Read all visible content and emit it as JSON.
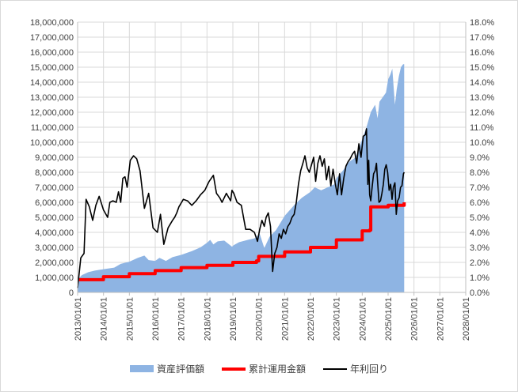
{
  "chart_data": {
    "type": "area",
    "left_axis": {
      "ylim": [
        0,
        18000000
      ],
      "step": 1000000,
      "ticks": [
        "0",
        "1,000,000",
        "2,000,000",
        "3,000,000",
        "4,000,000",
        "5,000,000",
        "6,000,000",
        "7,000,000",
        "8,000,000",
        "9,000,000",
        "10,000,000",
        "11,000,000",
        "12,000,000",
        "13,000,000",
        "14,000,000",
        "15,000,000",
        "16,000,000",
        "17,000,000",
        "18,000,000"
      ]
    },
    "right_axis": {
      "ylim": [
        0,
        18
      ],
      "step": 1,
      "ticks": [
        "0.0%",
        "1.0%",
        "2.0%",
        "3.0%",
        "4.0%",
        "5.0%",
        "6.0%",
        "7.0%",
        "8.0%",
        "9.0%",
        "10.0%",
        "11.0%",
        "12.0%",
        "13.0%",
        "14.0%",
        "15.0%",
        "16.0%",
        "17.0%",
        "18.0%"
      ]
    },
    "x_axis": {
      "range": [
        "2013-01-01",
        "2028-01-01"
      ],
      "ticks": [
        "2013/01/01",
        "2014/01/01",
        "2015/01/01",
        "2016/01/01",
        "2017/01/01",
        "2018/01/01",
        "2019/01/01",
        "2020/01/01",
        "2021/01/01",
        "2022/01/01",
        "2023/01/01",
        "2024/01/01",
        "2025/01/01",
        "2026/01/01",
        "2027/01/01",
        "2028/01/01"
      ]
    },
    "grid": true,
    "legend_position": "bottom",
    "series": [
      {
        "name": "資産評価額",
        "kind": "area",
        "axis": "left",
        "color": "#8eb4e3",
        "x": [
          "2013-01-01",
          "2013-03-01",
          "2013-06-01",
          "2013-09-01",
          "2014-01-01",
          "2014-06-01",
          "2014-09-01",
          "2015-01-01",
          "2015-05-01",
          "2015-08-01",
          "2015-10-01",
          "2016-01-01",
          "2016-03-01",
          "2016-06-01",
          "2016-09-01",
          "2017-01-01",
          "2017-06-01",
          "2017-10-01",
          "2018-01-01",
          "2018-02-15",
          "2018-04-01",
          "2018-06-01",
          "2018-09-01",
          "2018-12-20",
          "2019-01-15",
          "2019-04-01",
          "2019-08-01",
          "2019-11-01",
          "2020-01-15",
          "2020-03-20",
          "2020-06-01",
          "2020-09-01",
          "2021-01-01",
          "2021-06-01",
          "2021-09-01",
          "2022-01-01",
          "2022-03-01",
          "2022-06-01",
          "2022-09-01",
          "2022-12-01",
          "2023-01-01",
          "2023-04-01",
          "2023-07-01",
          "2023-10-01",
          "2024-01-01",
          "2024-03-01",
          "2024-05-01",
          "2024-07-01",
          "2024-08-05",
          "2024-09-01",
          "2024-12-01",
          "2025-01-01",
          "2025-02-01",
          "2025-03-01",
          "2025-04-07",
          "2025-05-01",
          "2025-06-01",
          "2025-07-01",
          "2025-08-01",
          "2025-08-15"
        ],
        "values": [
          850000,
          1150000,
          1350000,
          1450000,
          1550000,
          1650000,
          1900000,
          2050000,
          2300000,
          2450000,
          2150000,
          2100000,
          2300000,
          2100000,
          2350000,
          2500000,
          2750000,
          3000000,
          3300000,
          3500000,
          3200000,
          3400000,
          3450000,
          3050000,
          3150000,
          3350000,
          3500000,
          3600000,
          3900000,
          2950000,
          3700000,
          4150000,
          5100000,
          5900000,
          6300000,
          6700000,
          7000000,
          6800000,
          7000000,
          7200000,
          7600000,
          8100000,
          8700000,
          9000000,
          10200000,
          11000000,
          12000000,
          12500000,
          11600000,
          12700000,
          13300000,
          14200000,
          14500000,
          14900000,
          12500000,
          13500000,
          14400000,
          15000000,
          15200000,
          15200000
        ]
      },
      {
        "name": "累計運用金額",
        "kind": "line",
        "axis": "left",
        "color": "#ff0000",
        "x": [
          "2013-01-01",
          "2014-01-01",
          "2015-01-01",
          "2016-01-01",
          "2017-01-01",
          "2018-01-01",
          "2019-01-01",
          "2019-12-01",
          "2020-01-01",
          "2021-01-01",
          "2022-01-01",
          "2023-01-01",
          "2024-01-01",
          "2024-04-15",
          "2024-05-01",
          "2025-01-01",
          "2025-08-15"
        ],
        "values": [
          850000,
          1050000,
          1250000,
          1450000,
          1650000,
          1800000,
          2000000,
          2100000,
          2400000,
          2700000,
          3000000,
          3500000,
          4100000,
          4150000,
          5700000,
          5800000,
          6000000
        ]
      },
      {
        "name": "年利回り",
        "kind": "line",
        "axis": "right",
        "color": "#000000",
        "x": [
          "2013-01-01",
          "2013-02-15",
          "2013-04-01",
          "2013-05-01",
          "2013-06-15",
          "2013-08-01",
          "2013-09-15",
          "2013-11-01",
          "2014-01-01",
          "2014-03-01",
          "2014-04-01",
          "2014-05-15",
          "2014-07-01",
          "2014-08-01",
          "2014-09-01",
          "2014-10-01",
          "2014-11-01",
          "2014-12-01",
          "2015-01-15",
          "2015-03-01",
          "2015-04-15",
          "2015-06-01",
          "2015-08-01",
          "2015-10-01",
          "2015-12-01",
          "2016-02-01",
          "2016-03-15",
          "2016-05-01",
          "2016-07-01",
          "2016-09-01",
          "2016-10-01",
          "2016-11-01",
          "2016-12-01",
          "2017-02-01",
          "2017-04-01",
          "2017-06-01",
          "2017-08-01",
          "2017-10-01",
          "2017-12-01",
          "2018-01-01",
          "2018-02-01",
          "2018-04-01",
          "2018-05-15",
          "2018-07-01",
          "2018-08-01",
          "2018-10-01",
          "2018-12-01",
          "2018-12-20",
          "2019-01-15",
          "2019-03-01",
          "2019-05-01",
          "2019-07-01",
          "2019-09-01",
          "2019-11-01",
          "2019-12-15",
          "2020-01-15",
          "2020-02-15",
          "2020-03-20",
          "2020-04-15",
          "2020-05-15",
          "2020-06-15",
          "2020-07-15",
          "2020-08-15",
          "2020-09-15",
          "2020-10-15",
          "2020-11-15",
          "2020-12-15",
          "2021-01-15",
          "2021-02-15",
          "2021-03-15",
          "2021-04-15",
          "2021-05-15",
          "2021-06-15",
          "2021-07-15",
          "2021-08-15",
          "2021-09-15",
          "2021-10-15",
          "2021-11-15",
          "2021-12-15",
          "2022-01-15",
          "2022-02-15",
          "2022-03-15",
          "2022-04-15",
          "2022-05-15",
          "2022-06-15",
          "2022-07-15",
          "2022-08-15",
          "2022-09-15",
          "2022-10-15",
          "2022-11-15",
          "2022-12-15",
          "2023-01-15",
          "2023-02-15",
          "2023-03-15",
          "2023-04-15",
          "2023-05-15",
          "2023-06-15",
          "2023-07-15",
          "2023-08-15",
          "2023-09-15",
          "2023-10-15",
          "2023-11-15",
          "2023-12-15",
          "2024-01-15",
          "2024-02-15",
          "2024-03-01",
          "2024-03-20",
          "2024-04-01",
          "2024-04-15",
          "2024-05-01",
          "2024-05-20",
          "2024-06-10",
          "2024-07-01",
          "2024-07-20",
          "2024-08-05",
          "2024-08-25",
          "2024-09-15",
          "2024-10-05",
          "2024-10-25",
          "2024-11-15",
          "2024-12-05",
          "2024-12-25",
          "2025-01-15",
          "2025-02-05",
          "2025-02-25",
          "2025-03-15",
          "2025-04-07",
          "2025-04-25",
          "2025-05-15",
          "2025-06-05",
          "2025-06-25",
          "2025-07-15",
          "2025-08-05",
          "2025-08-15"
        ],
        "values": [
          0.3,
          2.3,
          2.6,
          6.2,
          5.7,
          4.8,
          5.8,
          6.4,
          5.5,
          5.0,
          6.0,
          6.1,
          6.0,
          6.7,
          6.0,
          7.6,
          7.7,
          7.0,
          8.8,
          9.1,
          8.9,
          8.1,
          5.6,
          6.6,
          4.3,
          4.0,
          5.2,
          3.2,
          4.3,
          4.8,
          5.0,
          5.3,
          5.7,
          6.2,
          6.1,
          5.8,
          6.1,
          6.5,
          6.8,
          7.1,
          7.4,
          7.8,
          6.6,
          6.3,
          6.0,
          6.6,
          6.1,
          6.8,
          6.6,
          6.0,
          5.8,
          4.2,
          4.2,
          4.0,
          3.4,
          4.2,
          4.8,
          4.4,
          5.0,
          5.3,
          4.4,
          1.4,
          2.6,
          3.0,
          3.9,
          3.6,
          4.2,
          3.9,
          4.4,
          4.6,
          5.0,
          5.2,
          6.0,
          7.2,
          8.1,
          8.6,
          9.1,
          8.3,
          8.0,
          8.5,
          9.0,
          7.4,
          8.6,
          9.1,
          8.4,
          8.9,
          7.5,
          8.4,
          7.1,
          8.2,
          7.3,
          6.5,
          7.9,
          6.5,
          7.6,
          8.4,
          8.7,
          8.9,
          9.2,
          9.4,
          8.6,
          9.9,
          9.0,
          10.4,
          10.5,
          10.9,
          7.2,
          8.8,
          6.5,
          6.1,
          7.0,
          7.9,
          8.1,
          8.6,
          7.4,
          6.0,
          6.1,
          6.6,
          7.2,
          8.2,
          8.5,
          8.0,
          6.8,
          7.2,
          6.2,
          7.0,
          7.3,
          5.2,
          6.1,
          6.3,
          7.0,
          7.1,
          7.9,
          8.0
        ]
      }
    ]
  }
}
